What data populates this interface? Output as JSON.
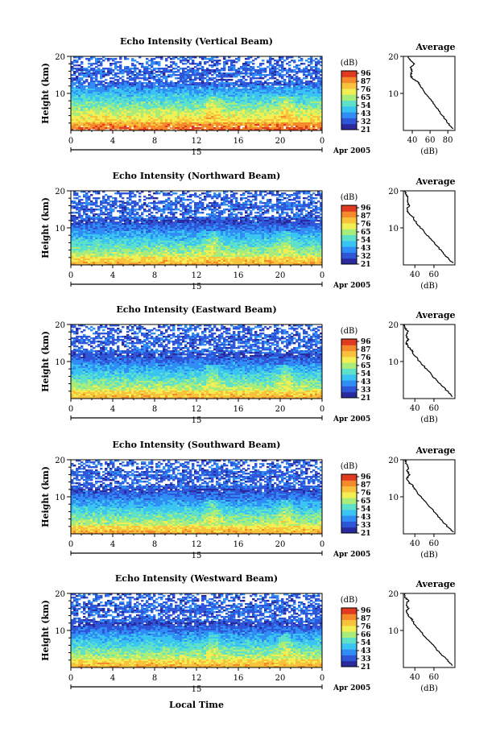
{
  "colors": {
    "scale": [
      "#2a2a9e",
      "#2f55d8",
      "#2f8df5",
      "#3ac4f2",
      "#5fe0c8",
      "#a8ec7c",
      "#f2ef52",
      "#f8c23c",
      "#f48a2c",
      "#e03a20"
    ]
  },
  "shared": {
    "colorbar_unit": "(dB)",
    "colorbar_ticks_a": [
      "96",
      "87",
      "76",
      "65",
      "54",
      "43",
      "32",
      "21"
    ],
    "colorbar_ticks_b": [
      "96",
      "87",
      "76",
      "65",
      "54",
      "43",
      "33",
      "21"
    ],
    "colorbar_ticks_c": [
      "96",
      "87",
      "76",
      "66",
      "54",
      "43",
      "33",
      "21"
    ],
    "ylabel": "Height (km)",
    "x_ticks": [
      "0",
      "4",
      "8",
      "12",
      "16",
      "20",
      "0"
    ],
    "date_day": "15",
    "date_month": "Apr 2005",
    "avg_title": "Average",
    "avg_xlabel": "(dB)",
    "xlabel_bottom": "Local Time"
  },
  "chart_data": [
    {
      "type": "heatmap",
      "title": "Echo Intensity (Vertical Beam)",
      "ylabel": "Height (km)",
      "y_ticks": [
        10,
        20
      ],
      "ylim": [
        0,
        20
      ],
      "x_ticks": [
        "0",
        "4",
        "8",
        "12",
        "16",
        "20",
        "0"
      ],
      "xlim_hours": [
        0,
        24
      ],
      "colorbar_ticks": [
        "96",
        "87",
        "76",
        "65",
        "54",
        "43",
        "32",
        "21"
      ],
      "colorbar_unit": "(dB)",
      "profile": {
        "title": "Average",
        "xlabel": "(dB)",
        "x_ticks": [
          "40",
          "60",
          "80"
        ],
        "xlim": [
          30,
          88
        ],
        "height_km": [
          0.5,
          2,
          4,
          6,
          8,
          10,
          12,
          13,
          14,
          15,
          16,
          17,
          18,
          19,
          20
        ],
        "intensity_db": [
          86,
          80,
          74,
          68,
          62,
          55,
          49,
          47,
          40,
          38,
          40,
          38,
          42,
          38,
          35
        ]
      }
    },
    {
      "type": "heatmap",
      "title": "Echo Intensity (Northward Beam)",
      "ylabel": "Height (km)",
      "y_ticks": [
        10,
        20
      ],
      "ylim": [
        0,
        20
      ],
      "x_ticks": [
        "0",
        "4",
        "8",
        "12",
        "16",
        "20",
        "0"
      ],
      "xlim_hours": [
        0,
        24
      ],
      "colorbar_ticks": [
        "96",
        "87",
        "76",
        "65",
        "54",
        "43",
        "32",
        "21"
      ],
      "colorbar_unit": "(dB)",
      "profile": {
        "title": "Average",
        "xlabel": "(dB)",
        "x_ticks": [
          "40",
          "60"
        ],
        "xlim": [
          28,
          82
        ],
        "height_km": [
          0.5,
          2,
          4,
          6,
          8,
          10,
          12,
          13,
          14,
          15,
          16,
          17,
          18,
          19,
          20
        ],
        "intensity_db": [
          80,
          74,
          67,
          60,
          53,
          46,
          40,
          38,
          33,
          32,
          34,
          32,
          33,
          31,
          30
        ]
      }
    },
    {
      "type": "heatmap",
      "title": "Echo Intensity (Eastward Beam)",
      "ylabel": "Height (km)",
      "y_ticks": [
        10,
        20
      ],
      "ylim": [
        0,
        20
      ],
      "x_ticks": [
        "0",
        "4",
        "8",
        "12",
        "16",
        "20",
        "0"
      ],
      "xlim_hours": [
        0,
        24
      ],
      "colorbar_ticks": [
        "96",
        "87",
        "76",
        "65",
        "54",
        "43",
        "33",
        "21"
      ],
      "colorbar_unit": "(dB)",
      "profile": {
        "title": "Average",
        "xlabel": "(dB)",
        "x_ticks": [
          "40",
          "60"
        ],
        "xlim": [
          28,
          82
        ],
        "height_km": [
          0.5,
          2,
          4,
          6,
          8,
          10,
          12,
          13,
          14,
          15,
          16,
          17,
          18,
          19,
          20
        ],
        "intensity_db": [
          80,
          74,
          66,
          59,
          52,
          45,
          39,
          37,
          33,
          31,
          33,
          31,
          33,
          30,
          29
        ]
      }
    },
    {
      "type": "heatmap",
      "title": "Echo Intensity (Southward Beam)",
      "ylabel": "Height (km)",
      "y_ticks": [
        10,
        20
      ],
      "ylim": [
        0,
        20
      ],
      "x_ticks": [
        "0",
        "4",
        "8",
        "12",
        "16",
        "20",
        "0"
      ],
      "xlim_hours": [
        0,
        24
      ],
      "colorbar_ticks": [
        "96",
        "87",
        "76",
        "65",
        "54",
        "43",
        "33",
        "21"
      ],
      "colorbar_unit": "(dB)",
      "profile": {
        "title": "Average",
        "xlabel": "(dB)",
        "x_ticks": [
          "40",
          "60"
        ],
        "xlim": [
          28,
          82
        ],
        "height_km": [
          0.5,
          2,
          4,
          6,
          8,
          10,
          12,
          13,
          14,
          15,
          16,
          17,
          18,
          19,
          20
        ],
        "intensity_db": [
          80,
          74,
          67,
          60,
          53,
          46,
          40,
          38,
          33,
          32,
          34,
          32,
          33,
          31,
          30
        ]
      }
    },
    {
      "type": "heatmap",
      "title": "Echo Intensity (Westward Beam)",
      "ylabel": "Height (km)",
      "y_ticks": [
        10,
        20
      ],
      "ylim": [
        0,
        20
      ],
      "x_ticks": [
        "0",
        "4",
        "8",
        "12",
        "16",
        "20",
        "0"
      ],
      "xlim_hours": [
        0,
        24
      ],
      "colorbar_ticks": [
        "96",
        "87",
        "76",
        "66",
        "54",
        "43",
        "33",
        "21"
      ],
      "colorbar_unit": "(dB)",
      "profile": {
        "title": "Average",
        "xlabel": "(dB)",
        "x_ticks": [
          "40",
          "60"
        ],
        "xlim": [
          28,
          82
        ],
        "height_km": [
          0.5,
          2,
          4,
          6,
          8,
          10,
          12,
          13,
          14,
          15,
          16,
          17,
          18,
          19,
          20
        ],
        "intensity_db": [
          80,
          74,
          66,
          59,
          52,
          45,
          39,
          37,
          33,
          31,
          33,
          31,
          33,
          30,
          29
        ]
      }
    }
  ]
}
